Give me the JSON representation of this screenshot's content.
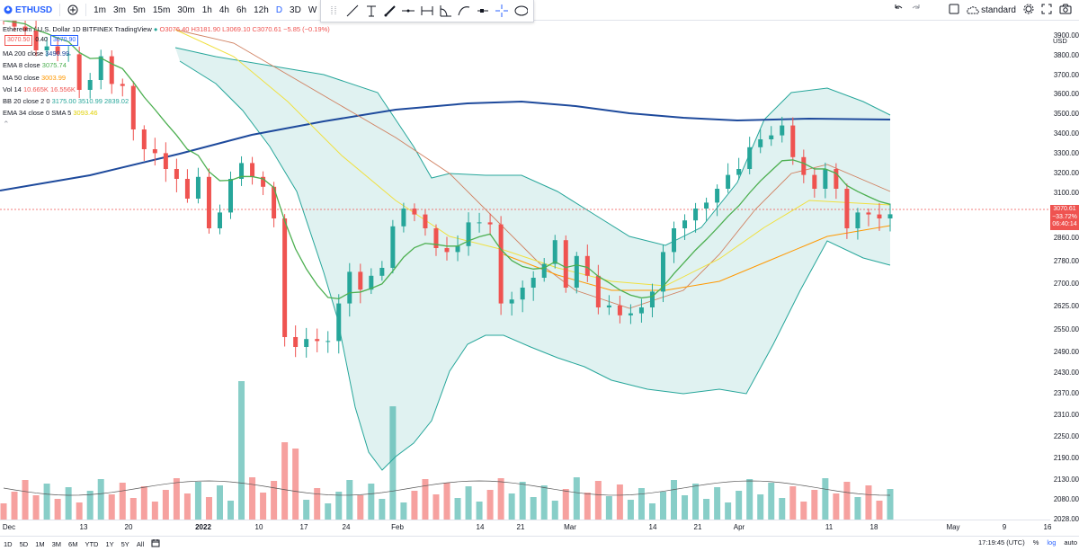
{
  "toolbar": {
    "symbol": "ETHUSD",
    "intervals": [
      "1m",
      "3m",
      "5m",
      "15m",
      "30m",
      "1h",
      "4h",
      "6h",
      "12h",
      "D",
      "3D",
      "W"
    ],
    "active_interval": "D",
    "undo_icon": "undo-icon",
    "redo_icon": "redo-icon",
    "style_label": "standard"
  },
  "legend": {
    "title": "Ethereum / U.S. Dollar  1D  BITFINEX  TradingView",
    "ohlc": "O3076.40  H3181.90  L3069.10  C3070.61  −5.85 (−0.19%)",
    "sell_price": "3070.50",
    "spread": "0.40",
    "buy_price": "3070.90",
    "indicators": [
      {
        "label": "MA 200 close",
        "value": "3490.99",
        "color": "#1e4a9c"
      },
      {
        "label": "EMA 8 close",
        "value": "3075.74",
        "color": "#4caf50"
      },
      {
        "label": "MA 50 close",
        "value": "3003.99",
        "color": "#ff9800"
      },
      {
        "label": "Vol 14",
        "value": "10.665K  16.556K",
        "color": "#ef5350"
      },
      {
        "label": "BB 20 close 2 0",
        "value": "3175.00  3510.99  2839.02",
        "color": "#26a69a"
      },
      {
        "label": "EMA 34 close 0 SMA 5",
        "value": "3093.46",
        "color": "#e0d000"
      }
    ]
  },
  "y_axis": {
    "currency": "USD",
    "ticks": [
      "3900.00",
      "3800.00",
      "3700.00",
      "3600.00",
      "3500.00",
      "3400.00",
      "3300.00",
      "3200.00",
      "3100.00",
      "2940.00",
      "2860.00",
      "2780.00",
      "2700.00",
      "2625.00",
      "2550.00",
      "2490.00",
      "2430.00",
      "2370.00",
      "2310.00",
      "2250.00",
      "2190.00",
      "2130.00",
      "2080.00",
      "2028.00"
    ],
    "last_price": "3070.61",
    "last_change": "−33.72%",
    "countdown": "06:40:14"
  },
  "x_axis": {
    "ticks": [
      "Dec",
      "13",
      "20",
      "2022",
      "10",
      "17",
      "24",
      "Feb",
      "14",
      "21",
      "Mar",
      "14",
      "21",
      "Apr",
      "11",
      "18",
      "May",
      "9",
      "16"
    ]
  },
  "bottom": {
    "ranges": [
      "1D",
      "5D",
      "1M",
      "3M",
      "6M",
      "YTD",
      "1Y",
      "5Y",
      "All"
    ],
    "time": "17:19:45 (UTC)",
    "percent": "%",
    "log": "log",
    "auto": "auto"
  },
  "colors": {
    "up": "#26a69a",
    "down": "#ef5350",
    "bb_fill": "#e0f2f1",
    "ma200": "#1e4a9c",
    "ema8": "#4caf50",
    "ema34": "#f0e040",
    "ma50": "#ff9800",
    "accent": "#2962ff"
  },
  "chart_data": {
    "type": "candlestick",
    "title": "Ethereum / U.S. Dollar 1D BITFINEX",
    "x_labels": [
      "Dec",
      "13",
      "20",
      "2022",
      "10",
      "17",
      "24",
      "Feb",
      "14",
      "21",
      "Mar",
      "14",
      "21",
      "Apr",
      "11",
      "18",
      "May",
      "9",
      "16"
    ],
    "y_ticks": [
      3900,
      3800,
      3700,
      3600,
      3500,
      3400,
      3300,
      3200,
      3100,
      2940,
      2860,
      2780,
      2700,
      2625,
      2550,
      2490,
      2430,
      2370,
      2310,
      2250,
      2190,
      2130,
      2080,
      2028
    ],
    "candles_close": [
      4050,
      4020,
      4000,
      3900,
      3920,
      3880,
      3880,
      3700,
      3750,
      3870,
      3730,
      3720,
      3500,
      3400,
      3380,
      3300,
      3250,
      3150,
      3260,
      3000,
      3080,
      3250,
      3330,
      3260,
      3210,
      3050,
      2450,
      2400,
      2440,
      2430,
      2430,
      2620,
      2780,
      2690,
      2760,
      2800,
      3010,
      3100,
      3070,
      3000,
      2900,
      2880,
      2910,
      3030,
      3030,
      3020,
      2620,
      2640,
      2700,
      2750,
      2820,
      2940,
      2700,
      2860,
      2760,
      2600,
      2610,
      2560,
      2570,
      2600,
      2680,
      2880,
      3000,
      3040,
      3100,
      3130,
      3200,
      3270,
      3300,
      3410,
      3450,
      3470,
      3520,
      3360,
      3270,
      3200,
      3300,
      3200,
      3000,
      3080,
      3070,
      3050,
      3071
    ],
    "ma200_approx": [
      3330,
      3380,
      3430,
      3470,
      3500,
      3520,
      3500,
      3490
    ],
    "bb_upper_max": 3600,
    "bb_lower_min": 2340,
    "last_close": 3070.61,
    "change_percent": -33.72
  }
}
